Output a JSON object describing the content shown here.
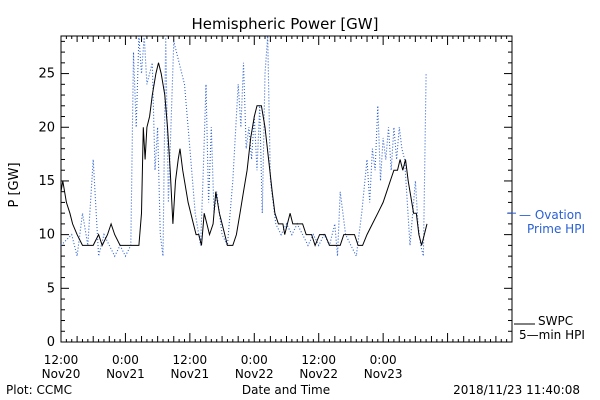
{
  "chart_data": {
    "type": "line",
    "title": "Hemispheric Power [GW]",
    "ylabel": "P [GW]",
    "xlabel": "Date and Time",
    "ylim": [
      0,
      28.5
    ],
    "yticks": [
      0,
      5,
      10,
      15,
      20,
      25
    ],
    "xlim": [
      "2018-11-20 12:00",
      "2018-11-24 00:00"
    ],
    "xticks": [
      {
        "t": "2018-11-20 12:00",
        "time": "12:00",
        "date": "Nov20"
      },
      {
        "t": "2018-11-21 00:00",
        "time": "0:00",
        "date": "Nov21"
      },
      {
        "t": "2018-11-21 12:00",
        "time": "12:00",
        "date": "Nov21"
      },
      {
        "t": "2018-11-22 00:00",
        "time": "0:00",
        "date": "Nov22"
      },
      {
        "t": "2018-11-22 12:00",
        "time": "12:00",
        "date": "Nov22"
      },
      {
        "t": "2018-11-23 00:00",
        "time": "0:00",
        "date": "Nov23"
      }
    ],
    "series": [
      {
        "name": "SWPC 5-min HPI",
        "style": "solid",
        "color": "#000000",
        "points": [
          [
            "2018-11-20 12:00",
            14
          ],
          [
            "2018-11-20 12:20",
            15
          ],
          [
            "2018-11-20 13:00",
            13
          ],
          [
            "2018-11-20 13:40",
            12
          ],
          [
            "2018-11-20 14:10",
            11
          ],
          [
            "2018-11-20 15:00",
            10
          ],
          [
            "2018-11-20 16:00",
            9
          ],
          [
            "2018-11-20 18:00",
            9
          ],
          [
            "2018-11-20 19:00",
            10
          ],
          [
            "2018-11-20 19:40",
            9
          ],
          [
            "2018-11-20 20:40",
            10
          ],
          [
            "2018-11-20 21:20",
            11
          ],
          [
            "2018-11-20 22:00",
            10
          ],
          [
            "2018-11-20 23:00",
            9
          ],
          [
            "2018-11-21 00:00",
            9
          ],
          [
            "2018-11-21 01:00",
            9
          ],
          [
            "2018-11-21 01:20",
            9
          ],
          [
            "2018-11-21 02:30",
            9
          ],
          [
            "2018-11-21 03:00",
            12
          ],
          [
            "2018-11-21 03:20",
            20
          ],
          [
            "2018-11-21 03:40",
            17
          ],
          [
            "2018-11-21 04:00",
            20
          ],
          [
            "2018-11-21 04:30",
            21
          ],
          [
            "2018-11-21 05:00",
            23
          ],
          [
            "2018-11-21 05:40",
            25
          ],
          [
            "2018-11-21 06:10",
            26
          ],
          [
            "2018-11-21 06:40",
            25
          ],
          [
            "2018-11-21 07:20",
            23
          ],
          [
            "2018-11-21 07:50",
            20
          ],
          [
            "2018-11-21 08:20",
            16
          ],
          [
            "2018-11-21 08:50",
            11
          ],
          [
            "2018-11-21 09:20",
            15
          ],
          [
            "2018-11-21 09:50",
            17
          ],
          [
            "2018-11-21 10:10",
            18
          ],
          [
            "2018-11-21 10:40",
            16
          ],
          [
            "2018-11-21 11:00",
            15
          ],
          [
            "2018-11-21 11:40",
            13
          ],
          [
            "2018-11-21 12:40",
            11
          ],
          [
            "2018-11-21 13:10",
            10
          ],
          [
            "2018-11-21 13:40",
            10
          ],
          [
            "2018-11-21 14:10",
            9
          ],
          [
            "2018-11-21 14:40",
            12
          ],
          [
            "2018-11-21 15:10",
            11
          ],
          [
            "2018-11-21 15:40",
            10
          ],
          [
            "2018-11-21 16:20",
            11
          ],
          [
            "2018-11-21 16:50",
            14
          ],
          [
            "2018-11-21 17:30",
            12
          ],
          [
            "2018-11-21 18:00",
            11
          ],
          [
            "2018-11-21 18:30",
            10
          ],
          [
            "2018-11-21 19:00",
            9
          ],
          [
            "2018-11-21 20:00",
            9
          ],
          [
            "2018-11-21 20:40",
            10
          ],
          [
            "2018-11-21 21:20",
            12
          ],
          [
            "2018-11-21 22:00",
            14
          ],
          [
            "2018-11-21 22:40",
            16
          ],
          [
            "2018-11-21 23:20",
            19
          ],
          [
            "2018-11-22 00:00",
            21
          ],
          [
            "2018-11-22 00:30",
            22
          ],
          [
            "2018-11-22 01:20",
            22
          ],
          [
            "2018-11-22 02:00",
            20
          ],
          [
            "2018-11-22 02:40",
            17
          ],
          [
            "2018-11-22 03:20",
            14
          ],
          [
            "2018-11-22 03:50",
            12
          ],
          [
            "2018-11-22 04:30",
            11
          ],
          [
            "2018-11-22 05:20",
            11
          ],
          [
            "2018-11-22 05:40",
            10
          ],
          [
            "2018-11-22 06:10",
            11
          ],
          [
            "2018-11-22 06:40",
            12
          ],
          [
            "2018-11-22 07:10",
            11
          ],
          [
            "2018-11-22 08:00",
            11
          ],
          [
            "2018-11-22 09:00",
            11
          ],
          [
            "2018-11-22 09:40",
            10
          ],
          [
            "2018-11-22 10:40",
            10
          ],
          [
            "2018-11-22 11:20",
            9
          ],
          [
            "2018-11-22 12:10",
            10
          ],
          [
            "2018-11-22 13:10",
            10
          ],
          [
            "2018-11-22 14:00",
            9
          ],
          [
            "2018-11-22 15:00",
            9
          ],
          [
            "2018-11-22 16:00",
            9
          ],
          [
            "2018-11-22 16:40",
            10
          ],
          [
            "2018-11-22 17:30",
            10
          ],
          [
            "2018-11-22 18:40",
            10
          ],
          [
            "2018-11-22 19:20",
            9
          ],
          [
            "2018-11-22 20:10",
            9
          ],
          [
            "2018-11-22 21:00",
            10
          ],
          [
            "2018-11-22 22:00",
            11
          ],
          [
            "2018-11-22 23:00",
            12
          ],
          [
            "2018-11-23 00:00",
            13
          ],
          [
            "2018-11-23 00:40",
            14
          ],
          [
            "2018-11-23 01:20",
            15
          ],
          [
            "2018-11-23 02:00",
            16
          ],
          [
            "2018-11-23 02:40",
            16
          ],
          [
            "2018-11-23 03:10",
            17
          ],
          [
            "2018-11-23 03:40",
            16
          ],
          [
            "2018-11-23 04:10",
            17
          ],
          [
            "2018-11-23 04:40",
            15
          ],
          [
            "2018-11-23 05:00",
            14
          ],
          [
            "2018-11-23 05:40",
            12
          ],
          [
            "2018-11-23 06:10",
            12
          ],
          [
            "2018-11-23 06:40",
            10
          ],
          [
            "2018-11-23 07:10",
            9
          ],
          [
            "2018-11-23 07:40",
            10
          ],
          [
            "2018-11-23 08:10",
            11
          ]
        ]
      },
      {
        "name": "Ovation Prime HPI",
        "style": "dotted",
        "color": "#2a5fd4",
        "points": [
          [
            "2018-11-20 12:00",
            9
          ],
          [
            "2018-11-20 14:00",
            10
          ],
          [
            "2018-11-20 15:00",
            8
          ],
          [
            "2018-11-20 16:00",
            12
          ],
          [
            "2018-11-20 17:00",
            9
          ],
          [
            "2018-11-20 18:00",
            17
          ],
          [
            "2018-11-20 19:00",
            8
          ],
          [
            "2018-11-20 20:00",
            10
          ],
          [
            "2018-11-20 21:00",
            9
          ],
          [
            "2018-11-20 22:00",
            8
          ],
          [
            "2018-11-20 23:00",
            9
          ],
          [
            "2018-11-21 00:00",
            8
          ],
          [
            "2018-11-21 01:00",
            9
          ],
          [
            "2018-11-21 01:30",
            27
          ],
          [
            "2018-11-21 02:00",
            20
          ],
          [
            "2018-11-21 02:30",
            28.5
          ],
          [
            "2018-11-21 03:00",
            25
          ],
          [
            "2018-11-21 03:30",
            28.5
          ],
          [
            "2018-11-21 04:00",
            24
          ],
          [
            "2018-11-21 05:00",
            26
          ],
          [
            "2018-11-21 05:30",
            16
          ],
          [
            "2018-11-21 06:00",
            20
          ],
          [
            "2018-11-21 06:30",
            10
          ],
          [
            "2018-11-21 07:00",
            8
          ],
          [
            "2018-11-21 07:30",
            28.5
          ],
          [
            "2018-11-21 08:00",
            13
          ],
          [
            "2018-11-21 09:00",
            28
          ],
          [
            "2018-11-21 11:00",
            24
          ],
          [
            "2018-11-21 12:00",
            18
          ],
          [
            "2018-11-21 13:00",
            12
          ],
          [
            "2018-11-21 14:00",
            9
          ],
          [
            "2018-11-21 14:30",
            16
          ],
          [
            "2018-11-21 15:00",
            24
          ],
          [
            "2018-11-21 15:30",
            13
          ],
          [
            "2018-11-21 16:00",
            20
          ],
          [
            "2018-11-21 16:30",
            12
          ],
          [
            "2018-11-21 17:00",
            14
          ],
          [
            "2018-11-21 18:00",
            10
          ],
          [
            "2018-11-21 19:00",
            9
          ],
          [
            "2018-11-21 20:00",
            15
          ],
          [
            "2018-11-21 21:00",
            24
          ],
          [
            "2018-11-21 21:30",
            20
          ],
          [
            "2018-11-21 22:00",
            26
          ],
          [
            "2018-11-21 22:30",
            18
          ],
          [
            "2018-11-21 23:00",
            20
          ],
          [
            "2018-11-21 23:30",
            17
          ],
          [
            "2018-11-22 00:00",
            21
          ],
          [
            "2018-11-22 00:30",
            16
          ],
          [
            "2018-11-22 01:00",
            22
          ],
          [
            "2018-11-22 01:30",
            12
          ],
          [
            "2018-11-22 02:00",
            25
          ],
          [
            "2018-11-22 02:30",
            28.5
          ],
          [
            "2018-11-22 03:00",
            15
          ],
          [
            "2018-11-22 04:00",
            11
          ],
          [
            "2018-11-22 05:00",
            10
          ],
          [
            "2018-11-22 06:00",
            11
          ],
          [
            "2018-11-22 07:00",
            10
          ],
          [
            "2018-11-22 08:00",
            11
          ],
          [
            "2018-11-22 09:00",
            10
          ],
          [
            "2018-11-22 10:00",
            9
          ],
          [
            "2018-11-22 11:00",
            10
          ],
          [
            "2018-11-22 12:00",
            9
          ],
          [
            "2018-11-22 13:00",
            10
          ],
          [
            "2018-11-22 14:00",
            9
          ],
          [
            "2018-11-22 15:00",
            11
          ],
          [
            "2018-11-22 15:30",
            8
          ],
          [
            "2018-11-22 16:00",
            14
          ],
          [
            "2018-11-22 17:00",
            10
          ],
          [
            "2018-11-22 18:00",
            9
          ],
          [
            "2018-11-22 19:00",
            8
          ],
          [
            "2018-11-22 19:30",
            10
          ],
          [
            "2018-11-22 20:00",
            12
          ],
          [
            "2018-11-22 21:00",
            17
          ],
          [
            "2018-11-22 21:30",
            13
          ],
          [
            "2018-11-22 22:00",
            18
          ],
          [
            "2018-11-22 22:30",
            16
          ],
          [
            "2018-11-22 23:00",
            22
          ],
          [
            "2018-11-22 23:30",
            15
          ],
          [
            "2018-11-23 00:00",
            19
          ],
          [
            "2018-11-23 00:30",
            17
          ],
          [
            "2018-11-23 01:00",
            20
          ],
          [
            "2018-11-23 01:30",
            16
          ],
          [
            "2018-11-23 02:00",
            20
          ],
          [
            "2018-11-23 02:30",
            17
          ],
          [
            "2018-11-23 03:00",
            20
          ],
          [
            "2018-11-23 03:30",
            18
          ],
          [
            "2018-11-23 04:00",
            17
          ],
          [
            "2018-11-23 04:30",
            13
          ],
          [
            "2018-11-23 05:00",
            9
          ],
          [
            "2018-11-23 05:30",
            12
          ],
          [
            "2018-11-23 06:00",
            15
          ],
          [
            "2018-11-23 06:30",
            11
          ],
          [
            "2018-11-23 07:00",
            9
          ],
          [
            "2018-11-23 07:30",
            8
          ],
          [
            "2018-11-23 08:00",
            25
          ]
        ]
      }
    ],
    "legend": [
      {
        "line1": "— Ovation",
        "line2": "Prime HPI",
        "color": "#2a5fd4"
      },
      {
        "line1": "SWPC",
        "line2": "5—min HPI",
        "color": "#000000"
      }
    ],
    "grid": false
  },
  "footer": {
    "left": "Plot: CCMC",
    "center": "Date and Time",
    "right": "2018/11/23 11:40:08"
  }
}
